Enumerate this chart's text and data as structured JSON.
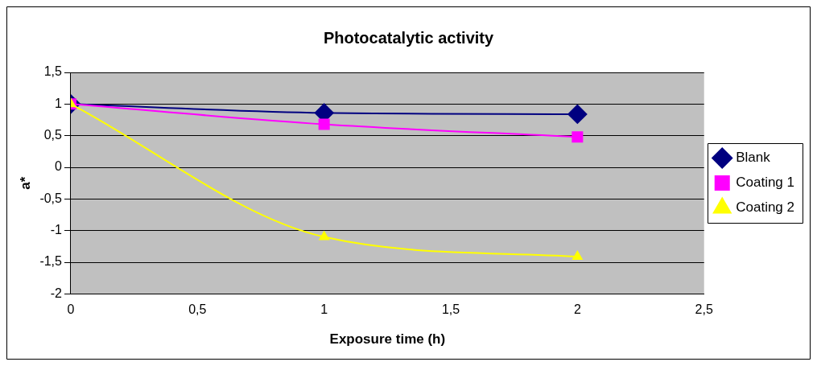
{
  "chart_data": {
    "type": "line",
    "title": "Photocatalytic activity",
    "xlabel": "Exposure time (h)",
    "ylabel": "a*",
    "x": [
      0,
      1,
      2
    ],
    "series": [
      {
        "name": "Blank",
        "color": "#000080",
        "values": [
          1,
          0.86,
          0.84
        ],
        "marker": "diamond"
      },
      {
        "name": "Coating 1",
        "color": "#ff00ff",
        "values": [
          1,
          0.68,
          0.48
        ],
        "marker": "square"
      },
      {
        "name": "Coating 2",
        "color": "#ffff00",
        "values": [
          1,
          -1.1,
          -1.41
        ],
        "marker": "triangle"
      }
    ],
    "xlim": [
      0,
      2.5
    ],
    "xticks": [
      0,
      {
        "value": 0.5,
        "label": "0,5"
      },
      1,
      {
        "value": 1.5,
        "label": "1,5"
      },
      2,
      {
        "value": 2.5,
        "label": "2,5"
      }
    ],
    "ylim": [
      -2,
      1.5
    ],
    "yticks": [
      -2,
      {
        "value": -1.5,
        "label": "-1,5"
      },
      -1,
      {
        "value": -0.5,
        "label": "-0,5"
      },
      0,
      {
        "value": 0.5,
        "label": "0,5"
      },
      1,
      {
        "value": 1.5,
        "label": "1,5"
      }
    ],
    "grid": "y",
    "legend": "right",
    "line_style": "solid"
  }
}
